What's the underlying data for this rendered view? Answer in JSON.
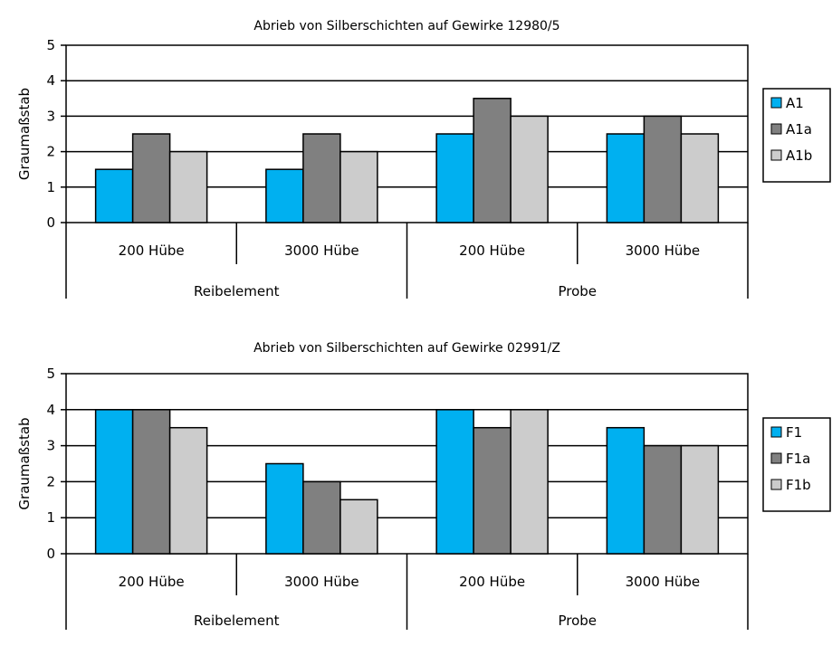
{
  "chart_data": [
    {
      "type": "bar",
      "title": "Abrieb von Silberschichten auf Gewirke 12980/5",
      "ylabel": "Graumaßstab",
      "xlabel": "",
      "ylim": [
        0,
        5
      ],
      "yticks": [
        0,
        1,
        2,
        3,
        4,
        5
      ],
      "grid": true,
      "legend_position": "right",
      "groups": [
        "Reibelement",
        "Probe"
      ],
      "categories": [
        "200 Hübe",
        "3000 Hübe",
        "200 Hübe",
        "3000 Hübe"
      ],
      "series": [
        {
          "name": "A1",
          "color": "#00B0F0",
          "values": [
            1.5,
            1.5,
            2.5,
            2.5
          ]
        },
        {
          "name": "A1a",
          "color": "#808080",
          "values": [
            2.5,
            2.5,
            3.5,
            3.0
          ]
        },
        {
          "name": "A1b",
          "color": "#CCCCCC",
          "values": [
            2.0,
            2.0,
            3.0,
            2.5
          ]
        }
      ]
    },
    {
      "type": "bar",
      "title": "Abrieb von Silberschichten auf Gewirke 02991/Z",
      "ylabel": "Graumaßstab",
      "xlabel": "",
      "ylim": [
        0,
        5
      ],
      "yticks": [
        0,
        1,
        2,
        3,
        4,
        5
      ],
      "grid": true,
      "legend_position": "right",
      "groups": [
        "Reibelement",
        "Probe"
      ],
      "categories": [
        "200 Hübe",
        "3000 Hübe",
        "200 Hübe",
        "3000 Hübe"
      ],
      "series": [
        {
          "name": "F1",
          "color": "#00B0F0",
          "values": [
            4.0,
            2.5,
            4.0,
            3.5
          ]
        },
        {
          "name": "F1a",
          "color": "#808080",
          "values": [
            4.0,
            2.0,
            3.5,
            3.0
          ]
        },
        {
          "name": "F1b",
          "color": "#CCCCCC",
          "values": [
            3.5,
            1.5,
            4.0,
            3.0
          ]
        }
      ]
    }
  ]
}
